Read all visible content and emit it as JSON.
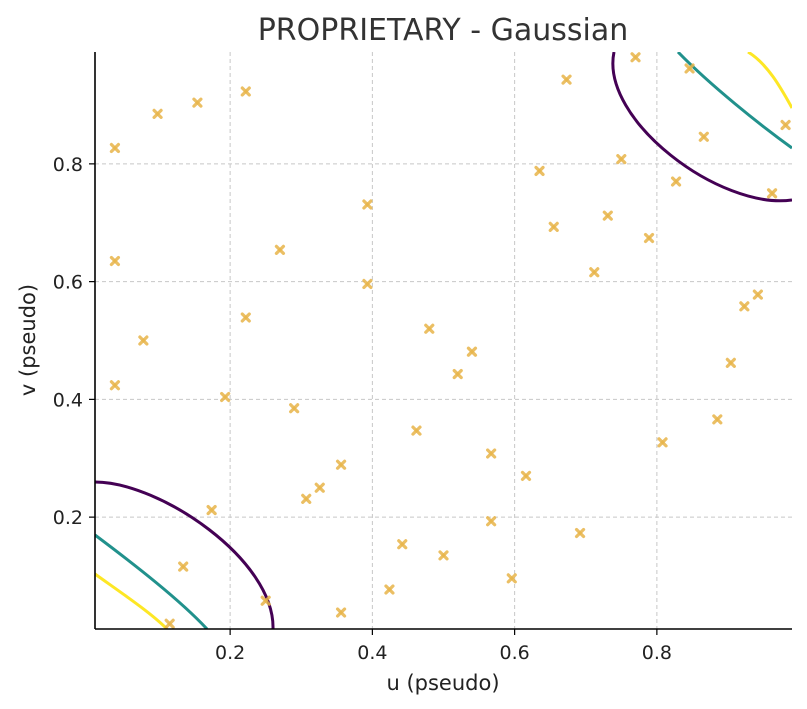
{
  "chart_data": {
    "type": "scatter",
    "title": "PROPRIETARY - Gaussian",
    "xlabel": "u (pseudo)",
    "ylabel": "v (pseudo)",
    "xlim": [
      0.01,
      0.99
    ],
    "ylim": [
      0.01,
      0.99
    ],
    "xticks": [
      0.2,
      0.4,
      0.6,
      0.8
    ],
    "yticks": [
      0.2,
      0.4,
      0.6,
      0.8
    ],
    "xtick_labels": [
      "0.2",
      "0.4",
      "0.6",
      "0.8"
    ],
    "ytick_labels": [
      "0.2",
      "0.4",
      "0.6",
      "0.8"
    ],
    "grid": true,
    "marker": "x",
    "point_color": "#e8b54a",
    "contour_colors": [
      "#440154",
      "#21918c",
      "#fde725"
    ],
    "points": [
      [
        0.038,
        0.827
      ],
      [
        0.098,
        0.885
      ],
      [
        0.154,
        0.904
      ],
      [
        0.222,
        0.923
      ],
      [
        0.038,
        0.635
      ],
      [
        0.27,
        0.654
      ],
      [
        0.393,
        0.731
      ],
      [
        0.393,
        0.596
      ],
      [
        0.222,
        0.539
      ],
      [
        0.078,
        0.5
      ],
      [
        0.038,
        0.424
      ],
      [
        0.193,
        0.404
      ],
      [
        0.29,
        0.385
      ],
      [
        0.48,
        0.52
      ],
      [
        0.54,
        0.481
      ],
      [
        0.52,
        0.443
      ],
      [
        0.462,
        0.347
      ],
      [
        0.356,
        0.289
      ],
      [
        0.326,
        0.25
      ],
      [
        0.307,
        0.231
      ],
      [
        0.174,
        0.212
      ],
      [
        0.134,
        0.116
      ],
      [
        0.115,
        0.019
      ],
      [
        0.25,
        0.058
      ],
      [
        0.356,
        0.038
      ],
      [
        0.424,
        0.077
      ],
      [
        0.442,
        0.154
      ],
      [
        0.5,
        0.135
      ],
      [
        0.567,
        0.308
      ],
      [
        0.567,
        0.193
      ],
      [
        0.616,
        0.27
      ],
      [
        0.596,
        0.096
      ],
      [
        0.692,
        0.173
      ],
      [
        0.635,
        0.788
      ],
      [
        0.655,
        0.693
      ],
      [
        0.673,
        0.943
      ],
      [
        0.712,
        0.616
      ],
      [
        0.731,
        0.712
      ],
      [
        0.75,
        0.808
      ],
      [
        0.77,
        0.981
      ],
      [
        0.789,
        0.674
      ],
      [
        0.827,
        0.77
      ],
      [
        0.846,
        0.962
      ],
      [
        0.866,
        0.846
      ],
      [
        0.808,
        0.327
      ],
      [
        0.885,
        0.366
      ],
      [
        0.904,
        0.462
      ],
      [
        0.923,
        0.558
      ],
      [
        0.942,
        0.578
      ],
      [
        0.962,
        0.75
      ],
      [
        0.981,
        0.866
      ]
    ]
  }
}
